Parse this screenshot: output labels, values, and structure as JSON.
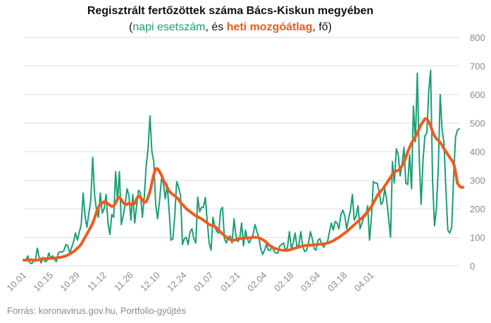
{
  "title": "Regisztrált fertőzöttek száma Bács-Kiskun megyében",
  "subtitle": {
    "open": "(",
    "daily_label": "napi esetszám",
    "middle": ", és ",
    "avg_label": "heti mozgóátlag",
    "close": ", fő)"
  },
  "source": "Forrás: koronavirus.gov.hu, Portfolio-gyűjtés",
  "chart_data": {
    "type": "line",
    "x_tick_labels": [
      "10.01",
      "10.15",
      "10.29",
      "11.12",
      "11.26",
      "12.10",
      "12.24",
      "01.07",
      "01.21",
      "02.04",
      "02.18",
      "03.04",
      "03.18",
      "04.01"
    ],
    "y_ticks": [
      0,
      100,
      200,
      300,
      400,
      500,
      600,
      700,
      800
    ],
    "ylim": [
      0,
      800
    ],
    "grid": true,
    "colors": {
      "daily": "#1a9e77",
      "avg": "#ef5b1e",
      "grid": "#dddddd",
      "tick": "#8a8a8a"
    },
    "series": [
      {
        "name": "napi esetszám",
        "values": [
          22,
          18,
          35,
          12,
          8,
          15,
          22,
          62,
          28,
          10,
          30,
          15,
          18,
          45,
          28,
          35,
          22,
          15,
          45,
          50,
          48,
          55,
          75,
          70,
          45,
          65,
          85,
          115,
          90,
          118,
          145,
          255,
          175,
          135,
          185,
          230,
          380,
          245,
          195,
          170,
          255,
          185,
          200,
          250,
          150,
          110,
          180,
          170,
          330,
          225,
          330,
          145,
          175,
          215,
          270,
          245,
          160,
          250,
          150,
          210,
          265,
          255,
          170,
          240,
          350,
          410,
          525,
          400,
          365,
          215,
          165,
          225,
          305,
          290,
          235,
          285,
          195,
          90,
          95,
          175,
          295,
          275,
          245,
          75,
          95,
          100,
          75,
          120,
          130,
          95,
          80,
          240,
          190,
          205,
          205,
          240,
          155,
          80,
          55,
          170,
          135,
          120,
          115,
          195,
          205,
          95,
          80,
          100,
          105,
          80,
          165,
          105,
          85,
          95,
          150,
          70,
          125,
          95,
          80,
          95,
          110,
          145,
          120,
          100,
          60,
          40,
          55,
          75,
          55,
          55,
          70,
          50,
          45,
          45,
          70,
          75,
          80,
          55,
          65,
          120,
          60,
          80,
          115,
          65,
          75,
          120,
          70,
          50,
          55,
          80,
          120,
          95,
          60,
          55,
          90,
          95,
          75,
          65,
          80,
          85,
          120,
          150,
          125,
          155,
          150,
          130,
          180,
          195,
          175,
          130,
          165,
          195,
          250,
          160,
          175,
          210,
          130,
          150,
          170,
          175,
          210,
          90,
          170,
          295,
          290,
          290,
          260,
          215,
          225,
          270,
          230,
          165,
          100,
          365,
          290,
          410,
          390,
          315,
          355,
          415,
          290,
          285,
          390,
          270,
          560,
          435,
          675,
          380,
          215,
          370,
          455,
          465,
          610,
          685,
          295,
          140,
          200,
          345,
          600,
          475,
          430,
          265,
          125,
          115,
          135,
          310,
          450,
          475,
          480
        ]
      },
      {
        "name": "heti mozgóátlag",
        "values": [
          20,
          20,
          20,
          21,
          21,
          20,
          19,
          20,
          22,
          24,
          25,
          25,
          25,
          26,
          27,
          27,
          28,
          28,
          29,
          30,
          31,
          33,
          35,
          38,
          42,
          46,
          50,
          56,
          62,
          68,
          76,
          88,
          100,
          112,
          124,
          136,
          150,
          168,
          188,
          205,
          215,
          220,
          225,
          222,
          218,
          212,
          208,
          210,
          220,
          235,
          240,
          232,
          222,
          215,
          215,
          220,
          215,
          220,
          218,
          235,
          245,
          240,
          232,
          222,
          225,
          240,
          260,
          290,
          320,
          340,
          340,
          330,
          318,
          300,
          290,
          275,
          262,
          255,
          250,
          245,
          240,
          232,
          222,
          215,
          208,
          200,
          195,
          190,
          185,
          180,
          175,
          172,
          168,
          165,
          160,
          155,
          150,
          145,
          142,
          140,
          138,
          132,
          125,
          118,
          112,
          106,
          100,
          95,
          92,
          90,
          90,
          92,
          95,
          95,
          96,
          97,
          98,
          98,
          98,
          99,
          100,
          100,
          100,
          98,
          95,
          92,
          88,
          82,
          75,
          70,
          66,
          62,
          60,
          58,
          56,
          55,
          55,
          54,
          55,
          56,
          58,
          60,
          62,
          64,
          66,
          68,
          70,
          71,
          72,
          72,
          72,
          73,
          74,
          74,
          75,
          76,
          76,
          77,
          78,
          80,
          82,
          85,
          88,
          92,
          96,
          100,
          105,
          110,
          115,
          120,
          126,
          132,
          138,
          144,
          150,
          156,
          162,
          168,
          175,
          182,
          190,
          198,
          208,
          220,
          232,
          245,
          255,
          262,
          270,
          280,
          290,
          300,
          310,
          320,
          328,
          332,
          335,
          340,
          350,
          362,
          380,
          400,
          415,
          430,
          440,
          452,
          465,
          480,
          495,
          505,
          515,
          515,
          505,
          490,
          470,
          455,
          445,
          440,
          432,
          422,
          410,
          400,
          390,
          380,
          370,
          360,
          330,
          290,
          280,
          275,
          275
        ]
      }
    ]
  }
}
